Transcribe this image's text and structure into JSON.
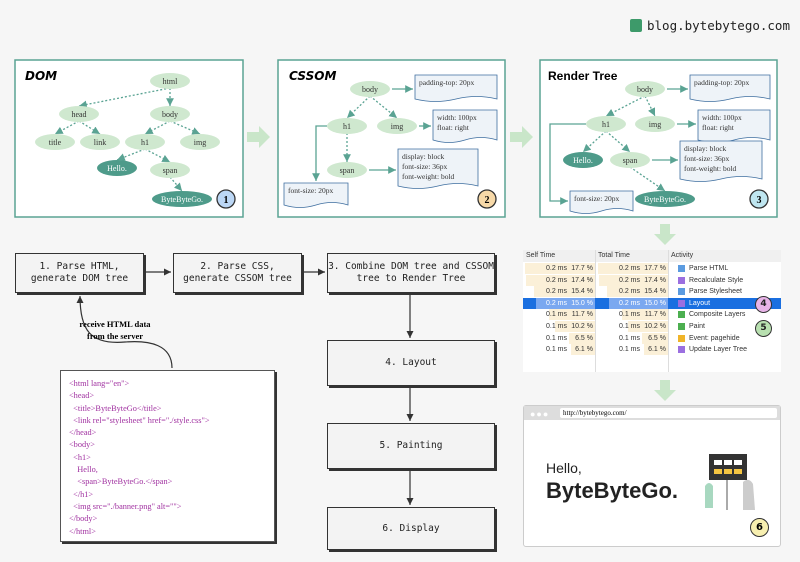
{
  "logo": {
    "text": "blog.bytebytego.com",
    "icon": "bytebytego-cube-icon"
  },
  "dom": {
    "title": "DOM",
    "nodes": [
      "html",
      "head",
      "body",
      "title",
      "link",
      "h1",
      "img",
      "Hello.",
      "span",
      "ByteByteGo."
    ],
    "badge": "1"
  },
  "cssom": {
    "title": "CSSOM",
    "nodes": [
      "body",
      "h1",
      "img",
      "span"
    ],
    "notes": [
      [
        "padding-top: 20px"
      ],
      [
        "width: 100px",
        "float: right"
      ],
      [
        "display: block",
        "font-size: 36px",
        "font-weight: bold"
      ],
      [
        "font-size: 20px"
      ]
    ],
    "badge": "2"
  },
  "render_tree": {
    "title": "Render Tree",
    "nodes": [
      "body",
      "h1",
      "img",
      "Hello.",
      "span",
      "ByteByteGo."
    ],
    "notes": [
      [
        "padding-top: 20px"
      ],
      [
        "width: 100px",
        "float: right"
      ],
      [
        "display: block",
        "font-size: 36px",
        "font-weight: bold"
      ],
      [
        "font-size: 20px"
      ]
    ],
    "badge": "3"
  },
  "steps": {
    "parse_html": "1. Parse HTML,\ngenerate DOM tree",
    "parse_css": "2. Parse CSS,\ngenerate CSSOM tree",
    "combine": "3. Combine DOM tree and CSSOM\ntree to Render Tree",
    "layout": "4. Layout",
    "painting": "5. Painting",
    "display": "6. Display"
  },
  "receive_label": [
    "receive HTML data",
    "from the server"
  ],
  "code_lines": [
    "<html lang=\"en\">",
    "<head>",
    "  <title>ByteByteGo</title>",
    "  <link rel=\"stylesheet\" href=\"./style.css\">",
    "</head>",
    "<body>",
    "  <h1>",
    "    Hello,",
    "    <span>ByteByteGo.</span>",
    "  </h1>",
    "  <img src=\"./banner.png\" alt=\"\">",
    "</body>",
    "</html>"
  ],
  "perf_table": {
    "headers": [
      "Self Time",
      "Total Time",
      "Activity"
    ],
    "rows": [
      {
        "self_ms": "0.2 ms",
        "self_pct": "17.7 %",
        "total_ms": "0.2 ms",
        "total_pct": "17.7 %",
        "activity": "Parse HTML",
        "color": "#5b9be0"
      },
      {
        "self_ms": "0.2 ms",
        "self_pct": "17.4 %",
        "total_ms": "0.2 ms",
        "total_pct": "17.4 %",
        "activity": "Recalculate Style",
        "color": "#9b6fe0"
      },
      {
        "self_ms": "0.2 ms",
        "self_pct": "15.4 %",
        "total_ms": "0.2 ms",
        "total_pct": "15.4 %",
        "activity": "Parse Stylesheet",
        "color": "#5b9be0"
      },
      {
        "self_ms": "0.2 ms",
        "self_pct": "15.0 %",
        "total_ms": "0.2 ms",
        "total_pct": "15.0 %",
        "activity": "Layout",
        "color": "#9b6fe0",
        "selected": true
      },
      {
        "self_ms": "0.1 ms",
        "self_pct": "11.7 %",
        "total_ms": "0.1 ms",
        "total_pct": "11.7 %",
        "activity": "Composite Layers",
        "color": "#4caf50"
      },
      {
        "self_ms": "0.1 ms",
        "self_pct": "10.2 %",
        "total_ms": "0.1 ms",
        "total_pct": "10.2 %",
        "activity": "Paint",
        "color": "#4caf50"
      },
      {
        "self_ms": "0.1 ms",
        "self_pct": "6.5 %",
        "total_ms": "0.1 ms",
        "total_pct": "6.5 %",
        "activity": "Event: pagehide",
        "color": "#f0b429"
      },
      {
        "self_ms": "0.1 ms",
        "self_pct": "6.1 %",
        "total_ms": "0.1 ms",
        "total_pct": "6.1 %",
        "activity": "Update Layer Tree",
        "color": "#9b6fe0"
      }
    ],
    "badges": [
      "4",
      "5"
    ]
  },
  "browser": {
    "url": "http://bytebytego.com/",
    "hello": "Hello,",
    "brand": "ByteByteGo.",
    "badge": "6"
  },
  "colors": {
    "frame": "#5aa393",
    "node": "#cfe8cf",
    "node_dark": "#4e9b8a",
    "arrow": "#c9e6c9",
    "selected": "#1a6fe0"
  }
}
